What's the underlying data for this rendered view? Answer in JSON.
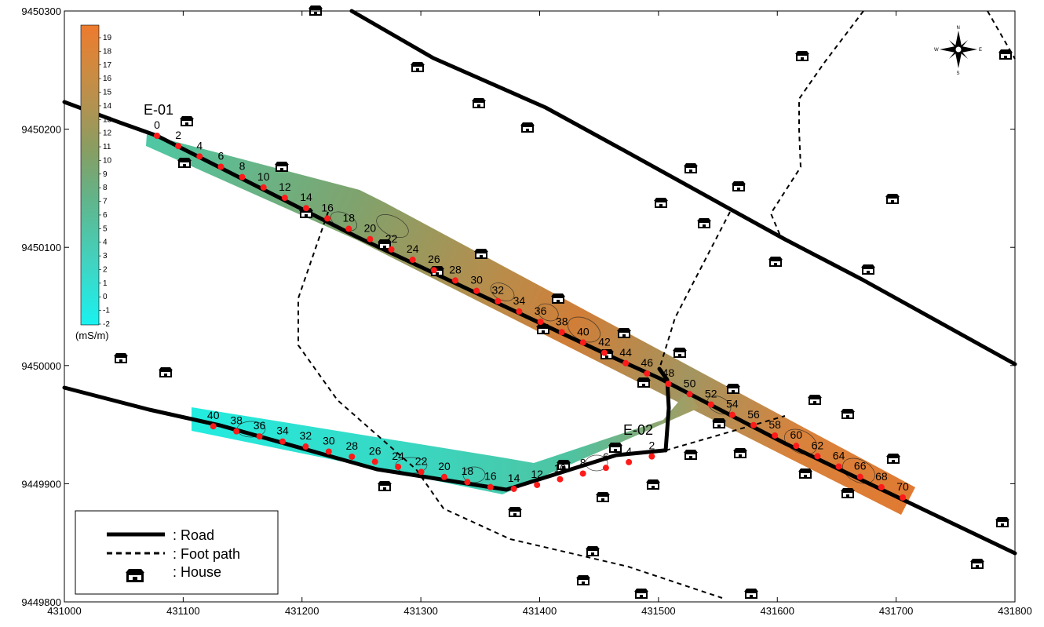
{
  "map": {
    "x_ticks": [
      "431000",
      "431100",
      "431200",
      "431300",
      "431400",
      "431500",
      "431600",
      "431700",
      "431800"
    ],
    "y_ticks": [
      "9450300",
      "9450200",
      "9450100",
      "9450000",
      "9449900",
      "9449800"
    ],
    "colorbar": {
      "ticks": [
        "19",
        "18",
        "17",
        "16",
        "15",
        "14",
        "13",
        "12",
        "11",
        "10",
        "9",
        "8",
        "7",
        "6",
        "5",
        "4",
        "3",
        "2",
        "1",
        "0",
        "-1",
        "-2"
      ],
      "unit": "(mS/m)",
      "colors": [
        "#ee7a2e",
        "#e8832f",
        "#d08d40",
        "#b79250",
        "#9a9555",
        "#7f9c66",
        "#5fb58a",
        "#44c8ad",
        "#2ae3d8",
        "#19f2f0"
      ]
    },
    "profiles": [
      {
        "name": "E-01",
        "stations": [
          "0",
          "2",
          "4",
          "6",
          "8",
          "10",
          "12",
          "14",
          "16",
          "18",
          "20",
          "22",
          "24",
          "26",
          "28",
          "30",
          "32",
          "34",
          "36",
          "38",
          "40",
          "42",
          "44",
          "46",
          "48",
          "50",
          "52",
          "54",
          "56",
          "58",
          "60",
          "62",
          "64",
          "66",
          "68",
          "70"
        ]
      },
      {
        "name": "E-02",
        "stations": [
          "2",
          "4",
          "6",
          "8",
          "10",
          "12",
          "14",
          "16",
          "18",
          "20",
          "22",
          "24",
          "26",
          "28",
          "30",
          "32",
          "34",
          "36",
          "38",
          "40"
        ]
      }
    ],
    "legend": {
      "road": ": Road",
      "foot_path": ": Foot path",
      "house": ": House"
    },
    "north_arrow": {
      "n": "N",
      "s": "S",
      "e": "E",
      "w": "W",
      "icon": "compass-rose-icon"
    },
    "colors": {
      "road": "#000000",
      "electrode": "#ff1a1a",
      "frame": "#000000"
    }
  }
}
